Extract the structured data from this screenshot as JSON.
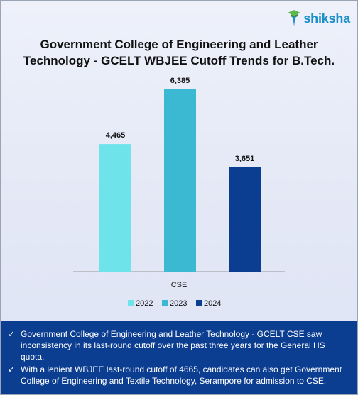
{
  "logo": {
    "text": "shiksha"
  },
  "title": "Government College of Engineering and Leather Technology - GCELT WBJEE Cutoff Trends for B.Tech.",
  "chart_data": {
    "type": "bar",
    "title": "Government College of Engineering and Leather Technology - GCELT WBJEE Cutoff Trends for B.Tech.",
    "categories": [
      "CSE"
    ],
    "series": [
      {
        "name": "2022",
        "values": [
          4465
        ],
        "label": "4,465",
        "color": "#6ee3ea"
      },
      {
        "name": "2023",
        "values": [
          6385
        ],
        "label": "6,385",
        "color": "#3bb9d3"
      },
      {
        "name": "2024",
        "values": [
          3651
        ],
        "label": "3,651",
        "color": "#0b3d91"
      }
    ],
    "ylim": [
      0,
      7000
    ],
    "grid": false,
    "legend_position": "bottom"
  },
  "notes": [
    "Government College of Engineering and Leather Technology - GCELT CSE saw inconsistency in its last-round cutoff over the past three years for the General HS quota.",
    "With a lenient WBJEE last-round cutoff of 4665, candidates can also get Government College of Engineering and Textile Technology, Serampore for admission to CSE."
  ]
}
